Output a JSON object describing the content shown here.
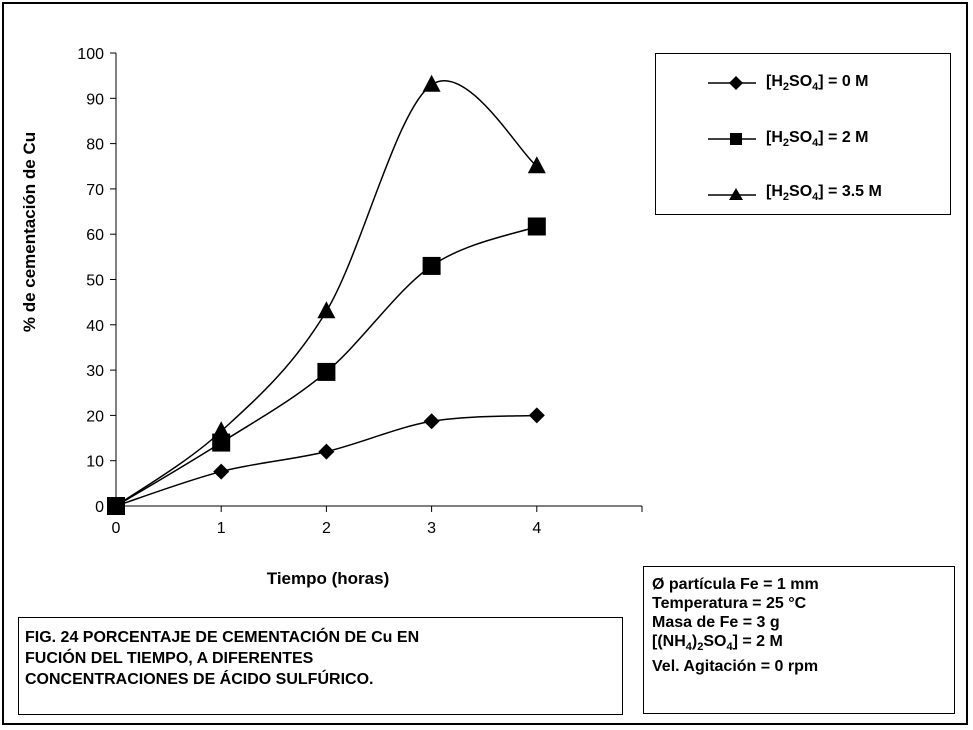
{
  "chart_data": {
    "type": "line",
    "x": [
      0,
      1,
      2,
      3,
      4
    ],
    "xlim": [
      0,
      5
    ],
    "ylim": [
      0,
      100
    ],
    "xticks": [
      "0",
      "1",
      "2",
      "3",
      "4"
    ],
    "yticks": [
      "0",
      "10",
      "20",
      "30",
      "40",
      "50",
      "60",
      "70",
      "80",
      "90",
      "100"
    ],
    "xlabel": "Tiempo (horas)",
    "ylabel": "% de cementación de Cu",
    "grid": false,
    "legend_position": "top-right, outside plot",
    "series": [
      {
        "name": "[H2SO4] = 0 M",
        "marker": "diamond",
        "values": [
          0,
          7.6,
          12,
          18.7,
          20
        ]
      },
      {
        "name": "[H2SO4] = 2 M",
        "marker": "square",
        "values": [
          0,
          14,
          29.6,
          53,
          61.7
        ]
      },
      {
        "name": "[H2SO4] = 3.5 M",
        "marker": "triangle",
        "values": [
          0,
          16.5,
          43,
          93,
          75
        ]
      }
    ],
    "line_color": "#000000"
  },
  "legend": {
    "items": [
      {
        "prefix": "[H",
        "sub1": "2",
        "mid": "SO",
        "sub2": "4",
        "suffix": "] = 0 M"
      },
      {
        "prefix": "[H",
        "sub1": "2",
        "mid": "SO",
        "sub2": "4",
        "suffix": "] = 2 M"
      },
      {
        "prefix": "[H",
        "sub1": "2",
        "mid": "SO",
        "sub2": "4",
        "suffix": "] = 3.5 M"
      }
    ]
  },
  "params": {
    "line1": "Ø partícula Fe = 1  mm",
    "line2": "Temperatura = 25 °C",
    "line3": "Masa de Fe = 3 g",
    "line4_a": "[(NH",
    "line4_sub1": "4",
    "line4_b": ")",
    "line4_sub2": "2",
    "line4_c": "SO",
    "line4_sub3": "4",
    "line4_d": "] = 2 M",
    "line5": "Vel. Agitación = 0 rpm"
  },
  "caption": {
    "line1": "FIG. 24 PORCENTAJE DE CEMENTACIÓN DE Cu EN",
    "line2": "FUCIÓN DEL TIEMPO, A DIFERENTES",
    "line3": "CONCENTRACIONES DE ÁCIDO SULFÚRICO."
  }
}
